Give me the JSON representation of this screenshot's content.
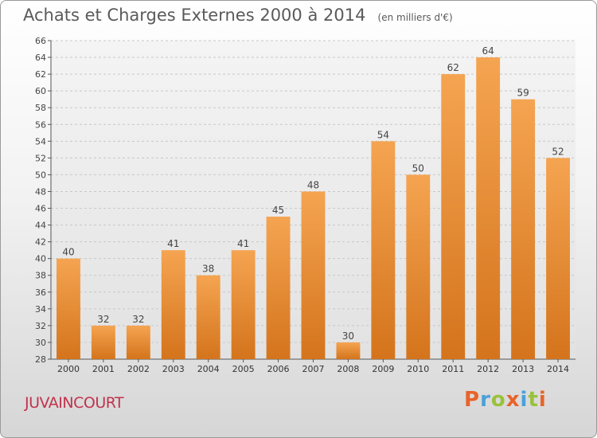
{
  "header": {
    "title": "Achats et Charges Externes 2000 à 2014",
    "subtitle": "(en milliers d'€)"
  },
  "footer": {
    "commune": "JUVAINCOURT",
    "logo_text": "Proxiti",
    "logo_colors": [
      "#e8632a",
      "#4aa1d8",
      "#9ac13a",
      "#e8632a",
      "#4aa1d8",
      "#9ac13a",
      "#e8632a"
    ]
  },
  "chart_data": {
    "type": "bar",
    "title": "Achats et Charges Externes 2000 à 2014",
    "subtitle": "(en milliers d'€)",
    "categories": [
      "2000",
      "2001",
      "2002",
      "2003",
      "2004",
      "2005",
      "2006",
      "2007",
      "2008",
      "2009",
      "2010",
      "2011",
      "2012",
      "2013",
      "2014"
    ],
    "values": [
      40,
      32,
      32,
      41,
      38,
      41,
      45,
      48,
      30,
      54,
      50,
      62,
      64,
      59,
      52
    ],
    "ylim": [
      28,
      66
    ],
    "yticks": [
      28,
      30,
      32,
      34,
      36,
      38,
      40,
      42,
      44,
      46,
      48,
      50,
      52,
      54,
      56,
      58,
      60,
      62,
      64,
      66
    ],
    "grid": true,
    "bar_color_top": "#f5a451",
    "bar_color_bottom": "#d4741c"
  }
}
